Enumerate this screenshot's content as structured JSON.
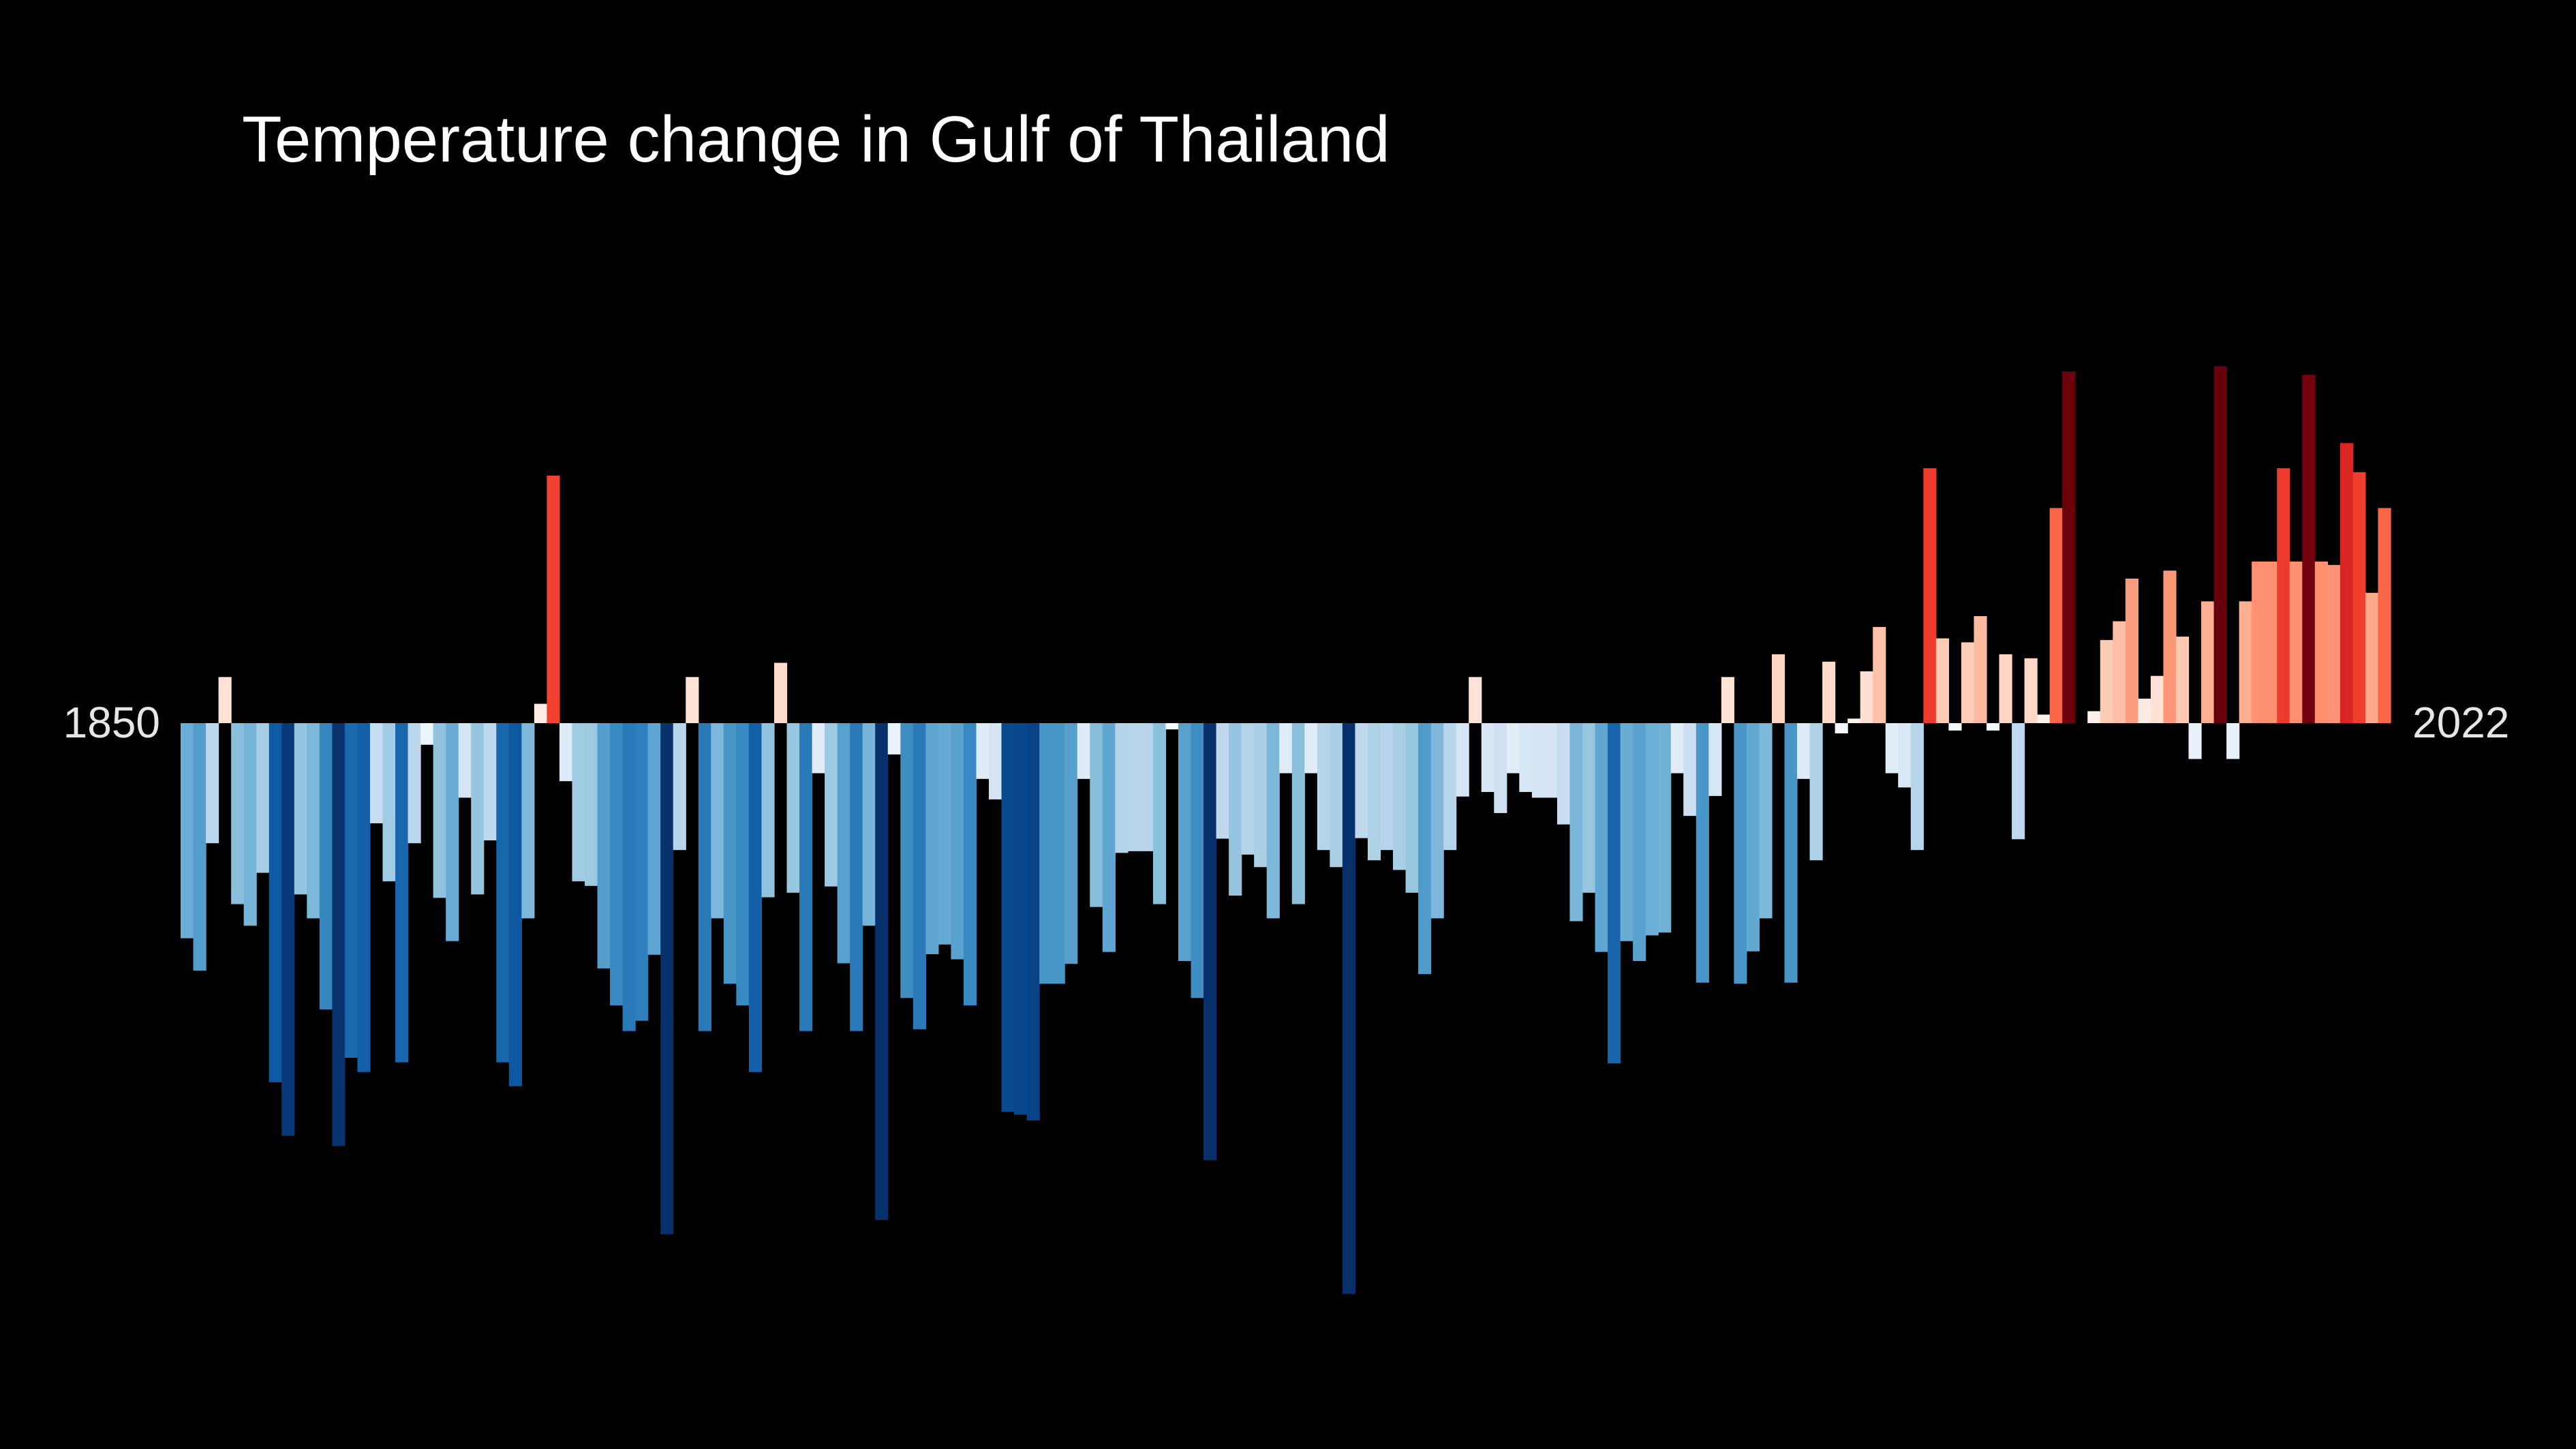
{
  "title": "Temperature change in Gulf of Thailand",
  "start_label": "1850",
  "end_label": "2022",
  "colors": {
    "background": "#000000",
    "title": "#ffffff",
    "labels": "#e6e6e6"
  },
  "chart_data": {
    "type": "bar",
    "title": "Temperature change in Gulf of Thailand",
    "x_start": 1850,
    "x_end": 2022,
    "x_tick_labels": [
      "1850",
      "2022"
    ],
    "ylim": [
      -1.0,
      0.7
    ],
    "grid": false,
    "legend": "none",
    "values": [
      -0.378,
      -0.435,
      -0.211,
      0.081,
      -0.318,
      -0.356,
      -0.263,
      -0.631,
      -0.725,
      -0.301,
      -0.343,
      -0.503,
      -0.743,
      -0.588,
      -0.613,
      -0.176,
      -0.278,
      -0.596,
      -0.211,
      -0.038,
      -0.307,
      -0.383,
      -0.131,
      -0.301,
      -0.206,
      -0.596,
      -0.638,
      -0.343,
      0.034,
      0.435,
      -0.102,
      -0.278,
      -0.286,
      -0.431,
      -0.496,
      -0.541,
      -0.523,
      -0.407,
      -0.898,
      -0.223,
      0.081,
      -0.541,
      -0.343,
      -0.458,
      -0.496,
      -0.613,
      -0.306,
      0.106,
      -0.298,
      -0.541,
      -0.088,
      -0.287,
      -0.422,
      -0.541,
      -0.356,
      -0.873,
      -0.055,
      -0.483,
      -0.538,
      -0.406,
      -0.389,
      -0.415,
      -0.496,
      -0.098,
      -0.134,
      -0.683,
      -0.688,
      -0.698,
      -0.458,
      -0.458,
      -0.423,
      -0.098,
      -0.323,
      -0.402,
      -0.228,
      -0.225,
      -0.225,
      -0.318,
      -0.011,
      -0.418,
      -0.483,
      -0.768,
      -0.203,
      -0.303,
      -0.231,
      -0.253,
      -0.343,
      -0.088,
      -0.318,
      -0.088,
      -0.223,
      -0.253,
      -1.003,
      -0.202,
      -0.241,
      -0.223,
      -0.258,
      -0.298,
      -0.441,
      -0.343,
      -0.223,
      -0.129,
      0.081,
      -0.121,
      -0.158,
      -0.088,
      -0.121,
      -0.131,
      -0.131,
      -0.178,
      -0.348,
      -0.298,
      -0.402,
      -0.598,
      -0.383,
      -0.418,
      -0.373,
      -0.368,
      -0.088,
      -0.163,
      -0.456,
      -0.128,
      0.081,
      -0.458,
      -0.401,
      -0.343,
      0.121,
      -0.456,
      -0.098,
      -0.241,
      0.108,
      -0.018,
      0.008,
      0.091,
      0.169,
      -0.088,
      -0.113,
      -0.223,
      0.448,
      0.149,
      -0.013,
      0.142,
      0.188,
      -0.013,
      0.121,
      -0.204,
      0.114,
      0.015,
      0.378,
      0.618,
      0.0,
      0.021,
      0.146,
      0.179,
      0.254,
      0.043,
      0.083,
      0.268,
      0.152,
      -0.063,
      0.214,
      0.627,
      -0.063,
      0.214,
      0.284,
      0.284,
      0.448,
      0.284,
      0.612,
      0.284,
      0.278,
      0.492,
      0.441,
      0.229,
      0.378
    ]
  }
}
